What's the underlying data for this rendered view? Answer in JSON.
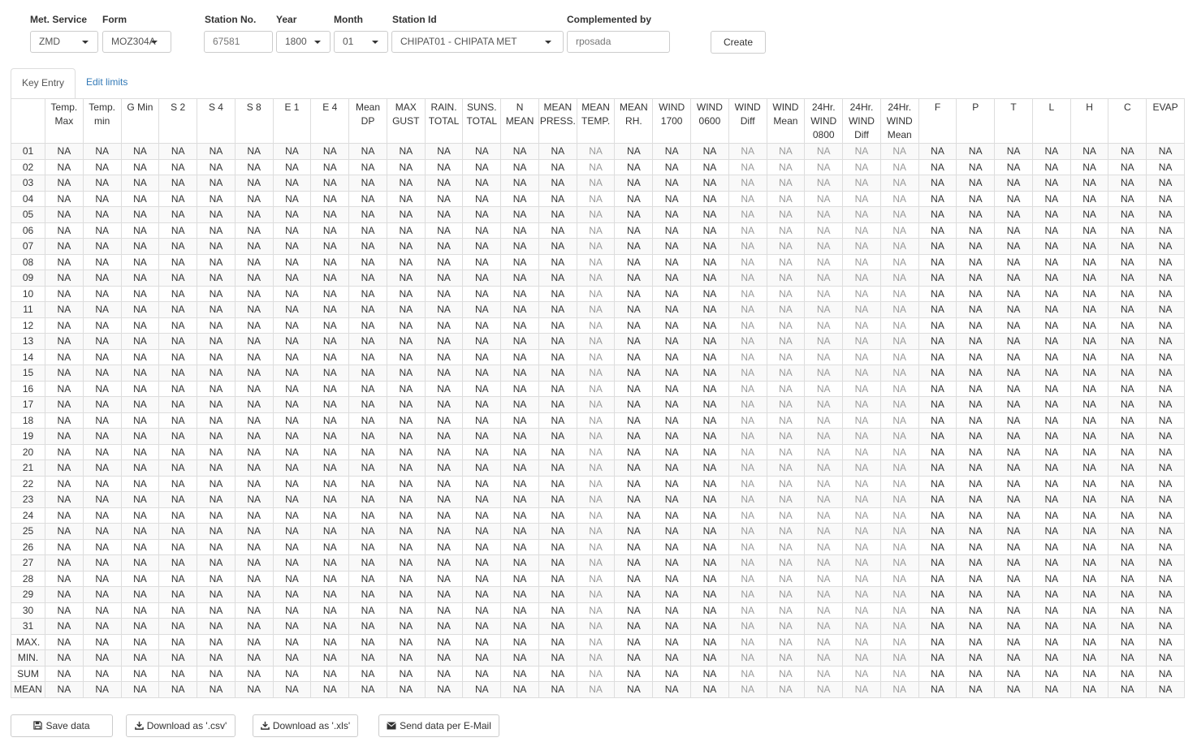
{
  "form": {
    "met_service": {
      "label": "Met. Service",
      "value": "ZMD"
    },
    "form_type": {
      "label": "Form",
      "value": "MOZ304A"
    },
    "station_no": {
      "label": "Station No.",
      "value": "67581"
    },
    "year": {
      "label": "Year",
      "value": "1800"
    },
    "month": {
      "label": "Month",
      "value": "01"
    },
    "station_id": {
      "label": "Station Id",
      "value": "CHIPAT01 - CHIPATA MET"
    },
    "complemented_by": {
      "label": "Complemented by",
      "value": "rposada"
    },
    "create_label": "Create"
  },
  "tabs": [
    {
      "label": "Key Entry",
      "active": true
    },
    {
      "label": "Edit limits",
      "active": false
    }
  ],
  "table": {
    "columns": [
      [
        "Temp.",
        "Max"
      ],
      [
        "Temp.",
        "min"
      ],
      [
        "G Min"
      ],
      [
        "S 2"
      ],
      [
        "S 4"
      ],
      [
        "S 8"
      ],
      [
        "E 1"
      ],
      [
        "E 4"
      ],
      [
        "Mean",
        "DP"
      ],
      [
        "MAX",
        "GUST"
      ],
      [
        "RAIN.",
        "TOTAL"
      ],
      [
        "SUNS.",
        "TOTAL"
      ],
      [
        "N",
        "MEAN"
      ],
      [
        "MEAN",
        "PRESS."
      ],
      [
        "MEAN",
        "TEMP."
      ],
      [
        "MEAN",
        "RH."
      ],
      [
        "WIND",
        "1700"
      ],
      [
        "WIND",
        "0600"
      ],
      [
        "WIND",
        "Diff"
      ],
      [
        "WIND",
        "Mean"
      ],
      [
        "24Hr.",
        "WIND",
        "0800"
      ],
      [
        "24Hr.",
        "WIND",
        "Diff"
      ],
      [
        "24Hr.",
        "WIND",
        "Mean"
      ],
      [
        "F"
      ],
      [
        "P"
      ],
      [
        "T"
      ],
      [
        "L"
      ],
      [
        "H"
      ],
      [
        "C"
      ],
      [
        "EVAP"
      ]
    ],
    "dim_columns": [
      14,
      18,
      19,
      20,
      21,
      22
    ],
    "rows": [
      "01",
      "02",
      "03",
      "04",
      "05",
      "06",
      "07",
      "08",
      "09",
      "10",
      "11",
      "12",
      "13",
      "14",
      "15",
      "16",
      "17",
      "18",
      "19",
      "20",
      "21",
      "22",
      "23",
      "24",
      "25",
      "26",
      "27",
      "28",
      "29",
      "30",
      "31",
      "MAX.",
      "MIN.",
      "SUM",
      "MEAN"
    ],
    "cell_value": "NA"
  },
  "buttons": {
    "save": "Save data",
    "download_csv": "Download as '.csv'",
    "download_xls": "Download as '.xls'",
    "send_email": "Send data per E-Mail"
  },
  "icons": {
    "save": "floppy-disk-icon",
    "download": "download-icon",
    "email": "envelope-icon",
    "dropdown": "caret-down-icon"
  }
}
